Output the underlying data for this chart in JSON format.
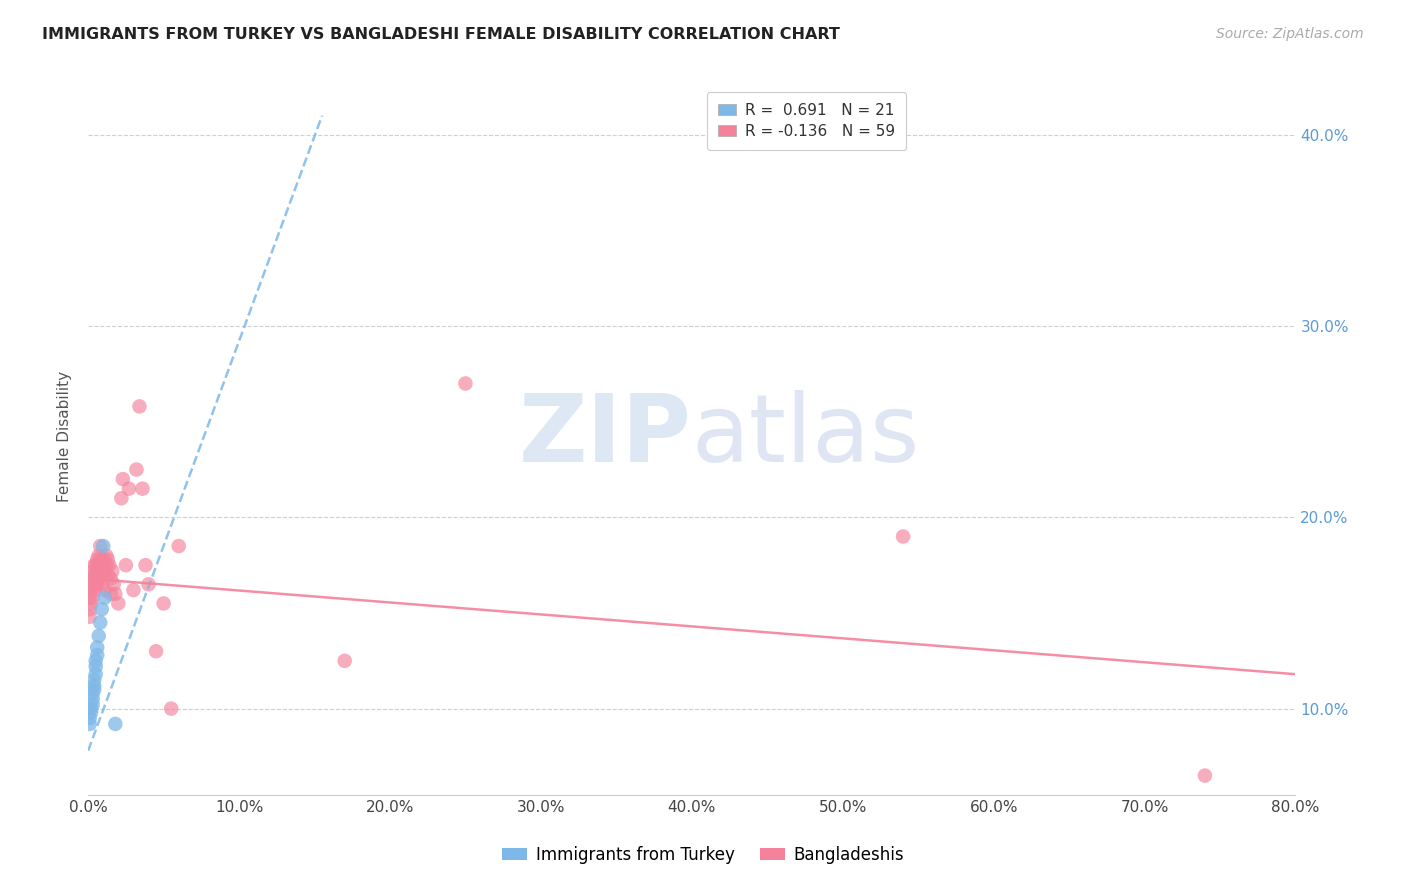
{
  "title": "IMMIGRANTS FROM TURKEY VS BANGLADESHI FEMALE DISABILITY CORRELATION CHART",
  "source": "Source: ZipAtlas.com",
  "ylabel": "Female Disability",
  "xlim": [
    0.0,
    0.8
  ],
  "ylim": [
    0.055,
    0.43
  ],
  "blue_color": "#7eb8e8",
  "pink_color": "#f4829a",
  "turkey_scatter": [
    [
      0.001,
      0.092
    ],
    [
      0.001,
      0.095
    ],
    [
      0.002,
      0.098
    ],
    [
      0.002,
      0.1
    ],
    [
      0.003,
      0.102
    ],
    [
      0.003,
      0.105
    ],
    [
      0.003,
      0.108
    ],
    [
      0.004,
      0.11
    ],
    [
      0.004,
      0.112
    ],
    [
      0.004,
      0.115
    ],
    [
      0.005,
      0.118
    ],
    [
      0.005,
      0.122
    ],
    [
      0.005,
      0.125
    ],
    [
      0.006,
      0.128
    ],
    [
      0.006,
      0.132
    ],
    [
      0.007,
      0.138
    ],
    [
      0.008,
      0.145
    ],
    [
      0.009,
      0.152
    ],
    [
      0.01,
      0.185
    ],
    [
      0.011,
      0.158
    ],
    [
      0.018,
      0.092
    ]
  ],
  "bangladesh_scatter": [
    [
      0.001,
      0.148
    ],
    [
      0.001,
      0.152
    ],
    [
      0.001,
      0.158
    ],
    [
      0.002,
      0.155
    ],
    [
      0.002,
      0.162
    ],
    [
      0.002,
      0.165
    ],
    [
      0.003,
      0.158
    ],
    [
      0.003,
      0.168
    ],
    [
      0.003,
      0.172
    ],
    [
      0.004,
      0.165
    ],
    [
      0.004,
      0.17
    ],
    [
      0.004,
      0.175
    ],
    [
      0.005,
      0.162
    ],
    [
      0.005,
      0.168
    ],
    [
      0.005,
      0.175
    ],
    [
      0.006,
      0.165
    ],
    [
      0.006,
      0.172
    ],
    [
      0.006,
      0.178
    ],
    [
      0.007,
      0.168
    ],
    [
      0.007,
      0.175
    ],
    [
      0.007,
      0.18
    ],
    [
      0.008,
      0.17
    ],
    [
      0.008,
      0.178
    ],
    [
      0.008,
      0.185
    ],
    [
      0.009,
      0.165
    ],
    [
      0.009,
      0.175
    ],
    [
      0.01,
      0.17
    ],
    [
      0.01,
      0.178
    ],
    [
      0.011,
      0.172
    ],
    [
      0.011,
      0.162
    ],
    [
      0.012,
      0.175
    ],
    [
      0.012,
      0.18
    ],
    [
      0.013,
      0.178
    ],
    [
      0.013,
      0.17
    ],
    [
      0.014,
      0.175
    ],
    [
      0.015,
      0.168
    ],
    [
      0.015,
      0.16
    ],
    [
      0.016,
      0.172
    ],
    [
      0.017,
      0.165
    ],
    [
      0.018,
      0.16
    ],
    [
      0.02,
      0.155
    ],
    [
      0.022,
      0.21
    ],
    [
      0.023,
      0.22
    ],
    [
      0.025,
      0.175
    ],
    [
      0.027,
      0.215
    ],
    [
      0.03,
      0.162
    ],
    [
      0.032,
      0.225
    ],
    [
      0.034,
      0.258
    ],
    [
      0.036,
      0.215
    ],
    [
      0.038,
      0.175
    ],
    [
      0.04,
      0.165
    ],
    [
      0.045,
      0.13
    ],
    [
      0.05,
      0.155
    ],
    [
      0.055,
      0.1
    ],
    [
      0.06,
      0.185
    ],
    [
      0.25,
      0.27
    ],
    [
      0.17,
      0.125
    ],
    [
      0.54,
      0.19
    ],
    [
      0.74,
      0.065
    ]
  ],
  "blue_trend_x": [
    0.0,
    0.155
  ],
  "blue_trend_y": [
    0.078,
    0.41
  ],
  "pink_trend_x": [
    0.0,
    0.8
  ],
  "pink_trend_y": [
    0.168,
    0.118
  ],
  "background_color": "#ffffff",
  "grid_color": "#d0d0d0",
  "watermark_zip": "ZIP",
  "watermark_atlas": "atlas",
  "zip_color": "#c5d8ee",
  "atlas_color": "#c5cfe8"
}
